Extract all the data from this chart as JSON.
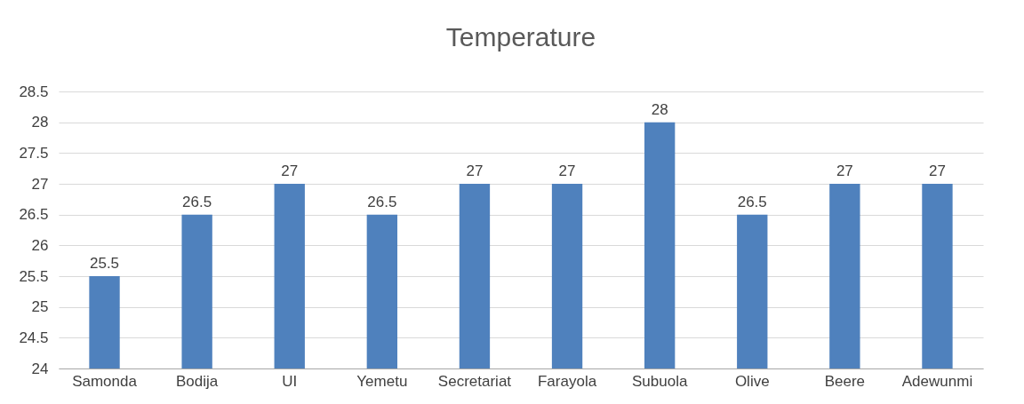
{
  "chart_data": {
    "type": "bar",
    "title": "Temperature",
    "categories": [
      "Samonda",
      "Bodija",
      "UI",
      "Yemetu",
      "Secretariat",
      "Farayola",
      "Subuola",
      "Olive",
      "Beere",
      "Adewunmi"
    ],
    "values": [
      25.5,
      26.5,
      27,
      26.5,
      27,
      27,
      28,
      26.5,
      27,
      27
    ],
    "color": "#4f81bd",
    "ylim": [
      24,
      28.5
    ],
    "yticks": [
      24,
      24.5,
      25,
      25.5,
      26,
      26.5,
      27,
      27.5,
      28,
      28.5
    ],
    "grid": "y",
    "data_labels": true
  }
}
